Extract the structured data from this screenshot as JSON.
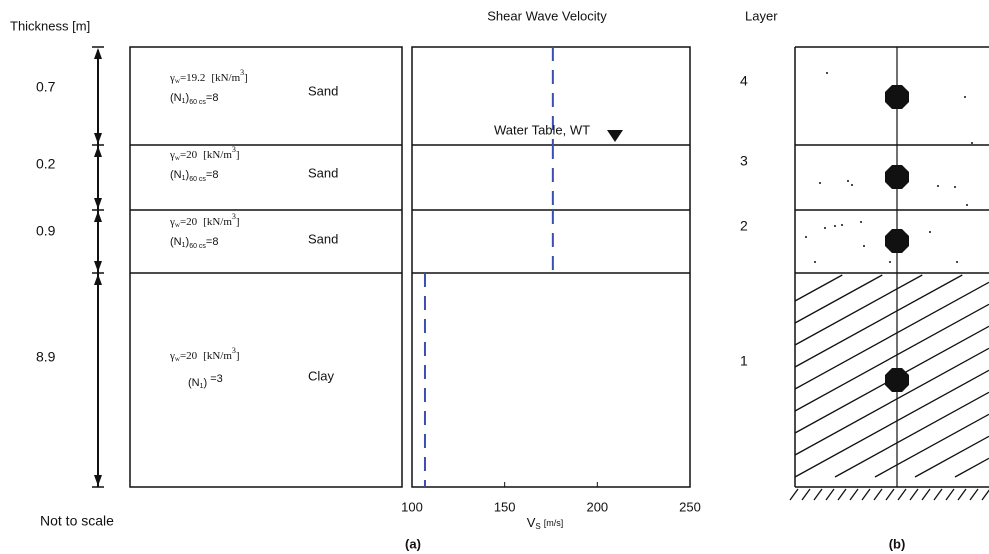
{
  "header": {
    "thickness_title": "Thickness [m]",
    "layer_title": "Layer",
    "note": "Not to scale"
  },
  "layers": [
    {
      "number": "4",
      "thickness": "0.7",
      "gamma": "γ",
      "gamma_sub": "w",
      "gamma_value": "=19.2",
      "unit": "[kN/m",
      "unit_sup": "3",
      "unit_end": "]",
      "spt": "(N",
      "spt_sub1": "1",
      "spt_close": ")",
      "spt_sub2": "60 cs",
      "spt_value": "=8",
      "soil": "Sand"
    },
    {
      "number": "3",
      "thickness": "0.2",
      "gamma": "γ",
      "gamma_sub": "w",
      "gamma_value": "=20",
      "unit": "[kN/m",
      "unit_sup": "3",
      "unit_end": "]",
      "spt": "(N",
      "spt_sub1": "1",
      "spt_close": ")",
      "spt_sub2": "60 cs",
      "spt_value": "=8",
      "soil": "Sand"
    },
    {
      "number": "2",
      "thickness": "0.9",
      "gamma": "γ",
      "gamma_sub": "w",
      "gamma_value": "=20",
      "unit": "[kN/m",
      "unit_sup": "3",
      "unit_end": "]",
      "spt": "(N",
      "spt_sub1": "1",
      "spt_close": ")",
      "spt_sub2": "60 cs",
      "spt_value": "=8",
      "soil": "Sand"
    },
    {
      "number": "1",
      "thickness": "8.9",
      "gamma": "γ",
      "gamma_sub": "w",
      "gamma_value": "=20",
      "unit": "[kN/m",
      "unit_sup": "3",
      "unit_end": "]",
      "spt": "(N",
      "spt_sub1": "1",
      "spt_close": ")",
      "spt_sub2": "",
      "spt_value": " =3",
      "soil": "Clay"
    }
  ],
  "chart_data": {
    "type": "step",
    "title": "Shear Wave Velocity",
    "xlabel": "V",
    "xlabel_sub": "S",
    "xlabel_unit": "[m/s]",
    "xlim": [
      100,
      250
    ],
    "xticks": [
      100,
      150,
      200,
      250
    ],
    "values": [
      176,
      176,
      176,
      107
    ],
    "color": "#3a4fb0",
    "annotation": "Water Table, WT"
  },
  "captions": {
    "a": "(a)",
    "b": "(b)"
  }
}
